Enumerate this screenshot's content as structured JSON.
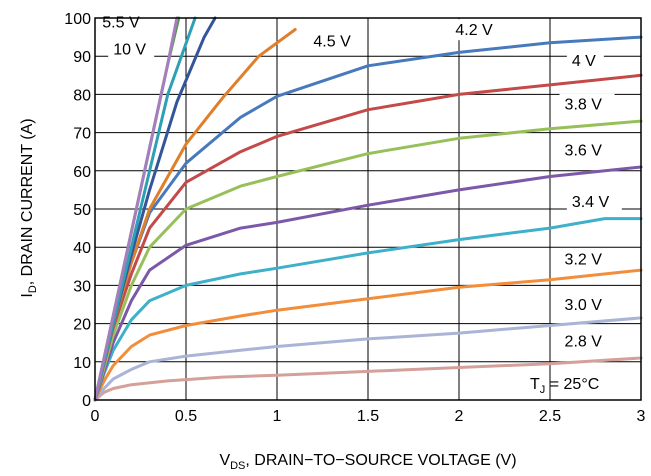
{
  "chart_data": {
    "type": "line",
    "xlabel_main": "V",
    "xlabel_sub": "DS",
    "xlabel_rest": ", DRAIN−TO−SOURCE VOLTAGE (V)",
    "ylabel_main": "I",
    "ylabel_sub": "D",
    "ylabel_rest": ", DRAIN CURRENT (A)",
    "annotation_main": "T",
    "annotation_sub": "J",
    "annotation_rest": " = 25°C",
    "xlim": [
      0,
      3
    ],
    "ylim": [
      0,
      100
    ],
    "x_ticks": [
      "0",
      "0.5",
      "1",
      "1.5",
      "2",
      "2.5",
      "3"
    ],
    "y_ticks": [
      "0",
      "10",
      "20",
      "30",
      "40",
      "50",
      "60",
      "70",
      "80",
      "90",
      "100"
    ],
    "grid": true,
    "series": [
      {
        "name": "2.8 V",
        "color": "#d4a09a",
        "points": [
          [
            0,
            0
          ],
          [
            0.05,
            2
          ],
          [
            0.1,
            3
          ],
          [
            0.2,
            4
          ],
          [
            0.4,
            5
          ],
          [
            0.7,
            6
          ],
          [
            1,
            6.5
          ],
          [
            1.5,
            7.5
          ],
          [
            2,
            8.5
          ],
          [
            2.5,
            9.5
          ],
          [
            3,
            11
          ]
        ]
      },
      {
        "name": "3.0 V",
        "color": "#a9b4d6",
        "points": [
          [
            0,
            0
          ],
          [
            0.05,
            3
          ],
          [
            0.1,
            5.5
          ],
          [
            0.2,
            8
          ],
          [
            0.3,
            10
          ],
          [
            0.5,
            11.5
          ],
          [
            0.8,
            13
          ],
          [
            1,
            14
          ],
          [
            1.5,
            16
          ],
          [
            2,
            17.5
          ],
          [
            2.5,
            19.5
          ],
          [
            3,
            21.5
          ]
        ]
      },
      {
        "name": "3.2 V",
        "color": "#f28d3b",
        "points": [
          [
            0,
            0
          ],
          [
            0.05,
            5
          ],
          [
            0.1,
            9
          ],
          [
            0.2,
            14
          ],
          [
            0.3,
            17
          ],
          [
            0.5,
            19.5
          ],
          [
            0.8,
            22
          ],
          [
            1,
            23.5
          ],
          [
            1.5,
            26.5
          ],
          [
            2,
            29.5
          ],
          [
            2.5,
            31.5
          ],
          [
            3,
            34
          ]
        ]
      },
      {
        "name": "3.4 V",
        "color": "#3fb0c9",
        "points": [
          [
            0,
            0
          ],
          [
            0.05,
            7
          ],
          [
            0.1,
            13
          ],
          [
            0.2,
            21
          ],
          [
            0.3,
            26
          ],
          [
            0.5,
            30
          ],
          [
            0.8,
            33
          ],
          [
            1,
            34.5
          ],
          [
            1.5,
            38.5
          ],
          [
            2,
            42
          ],
          [
            2.5,
            45
          ],
          [
            2.8,
            47.5
          ],
          [
            3,
            47.5
          ]
        ]
      },
      {
        "name": "3.6 V",
        "color": "#7b59a8",
        "points": [
          [
            0,
            0
          ],
          [
            0.1,
            15
          ],
          [
            0.2,
            26
          ],
          [
            0.3,
            34
          ],
          [
            0.5,
            40.5
          ],
          [
            0.8,
            45
          ],
          [
            1,
            46.5
          ],
          [
            1.5,
            51
          ],
          [
            2,
            55
          ],
          [
            2.5,
            58.5
          ],
          [
            3,
            61
          ]
        ]
      },
      {
        "name": "3.8 V",
        "color": "#97c05a",
        "points": [
          [
            0,
            0
          ],
          [
            0.1,
            17
          ],
          [
            0.2,
            30
          ],
          [
            0.3,
            40
          ],
          [
            0.5,
            50
          ],
          [
            0.8,
            56
          ],
          [
            1,
            58.5
          ],
          [
            1.5,
            64.5
          ],
          [
            2,
            68.5
          ],
          [
            2.5,
            71
          ],
          [
            3,
            73
          ]
        ]
      },
      {
        "name": "4 V",
        "color": "#c44a4a",
        "points": [
          [
            0,
            0
          ],
          [
            0.1,
            19
          ],
          [
            0.2,
            33
          ],
          [
            0.3,
            45
          ],
          [
            0.5,
            57
          ],
          [
            0.8,
            65
          ],
          [
            1,
            69
          ],
          [
            1.5,
            76
          ],
          [
            2,
            80
          ],
          [
            2.5,
            82.5
          ],
          [
            3,
            85
          ]
        ]
      },
      {
        "name": "4.2 V",
        "color": "#4779bd",
        "points": [
          [
            0,
            0
          ],
          [
            0.1,
            20
          ],
          [
            0.2,
            36
          ],
          [
            0.3,
            49
          ],
          [
            0.5,
            62
          ],
          [
            0.8,
            74
          ],
          [
            1,
            79.5
          ],
          [
            1.5,
            87.5
          ],
          [
            2,
            91
          ],
          [
            2.5,
            93.5
          ],
          [
            3,
            95
          ]
        ]
      },
      {
        "name": "4.5 V",
        "color": "#e07f2a",
        "points": [
          [
            0,
            0
          ],
          [
            0.1,
            20
          ],
          [
            0.2,
            36
          ],
          [
            0.3,
            50
          ],
          [
            0.5,
            67
          ],
          [
            0.7,
            79
          ],
          [
            0.9,
            90
          ],
          [
            1.1,
            97
          ]
        ]
      },
      {
        "name": "s_steep1",
        "color": "#33559a",
        "points": [
          [
            0,
            0
          ],
          [
            0.1,
            20
          ],
          [
            0.2,
            38
          ],
          [
            0.3,
            55
          ],
          [
            0.45,
            78
          ],
          [
            0.6,
            95
          ],
          [
            0.66,
            100
          ]
        ]
      },
      {
        "name": "s_steep2",
        "color": "#2e9fb5",
        "points": [
          [
            0,
            0
          ],
          [
            0.1,
            20
          ],
          [
            0.2,
            40
          ],
          [
            0.3,
            60
          ],
          [
            0.4,
            80
          ],
          [
            0.55,
            100
          ]
        ]
      },
      {
        "name": "10 V",
        "color": "#4f9a47",
        "points": [
          [
            0,
            0
          ],
          [
            0.1,
            22
          ],
          [
            0.2,
            44
          ],
          [
            0.3,
            66
          ],
          [
            0.4,
            88
          ],
          [
            0.46,
            100
          ]
        ]
      },
      {
        "name": "5.5 V",
        "color": "#a67ec0",
        "points": [
          [
            0,
            0
          ],
          [
            0.1,
            22
          ],
          [
            0.2,
            44
          ],
          [
            0.3,
            66
          ],
          [
            0.4,
            88
          ],
          [
            0.45,
            100
          ]
        ]
      }
    ],
    "curve_labels": [
      {
        "text": "5.5 V",
        "x": 0.04,
        "y": 97.5
      },
      {
        "text": "10 V",
        "x": 0.1,
        "y": 90.5
      },
      {
        "text": "4.5 V",
        "x": 1.2,
        "y": 92.5
      },
      {
        "text": "4.2 V",
        "x": 1.98,
        "y": 95.5
      },
      {
        "text": "4 V",
        "x": 2.62,
        "y": 87.5
      },
      {
        "text": "3.8 V",
        "x": 2.58,
        "y": 76
      },
      {
        "text": "3.6 V",
        "x": 2.58,
        "y": 64
      },
      {
        "text": "3.4 V",
        "x": 2.62,
        "y": 50.5
      },
      {
        "text": "3.2 V",
        "x": 2.58,
        "y": 35.5
      },
      {
        "text": "3.0 V",
        "x": 2.58,
        "y": 23.5
      },
      {
        "text": "2.8 V",
        "x": 2.58,
        "y": 14
      }
    ]
  }
}
